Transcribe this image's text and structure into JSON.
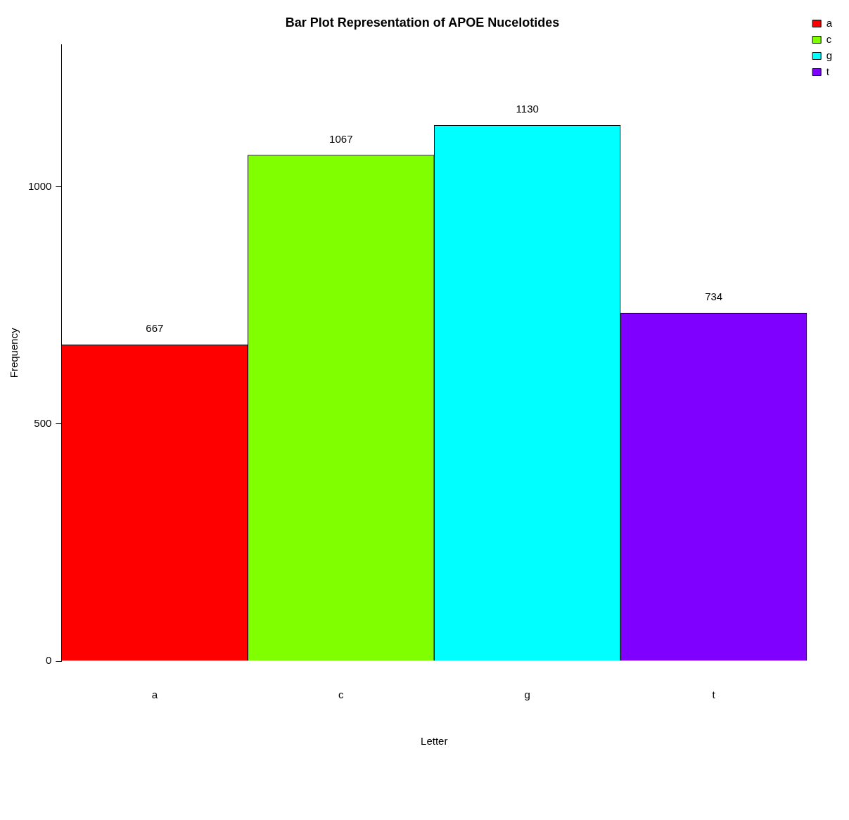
{
  "chart_data": {
    "type": "bar",
    "title": "Bar Plot Representation of APOE Nucelotides",
    "xlabel": "Letter",
    "ylabel": "Frequency",
    "categories": [
      "a",
      "c",
      "g",
      "t"
    ],
    "series": [
      {
        "name": "a",
        "color": "#ff0000",
        "values": [
          667,
          null,
          null,
          null
        ]
      },
      {
        "name": "c",
        "color": "#80ff00",
        "values": [
          null,
          1067,
          null,
          null
        ]
      },
      {
        "name": "g",
        "color": "#00ffff",
        "values": [
          null,
          null,
          1130,
          null
        ]
      },
      {
        "name": "t",
        "color": "#8000ff",
        "values": [
          null,
          null,
          null,
          734
        ]
      }
    ],
    "ylim": [
      0,
      1300
    ],
    "yticks": [
      0,
      500,
      1000
    ],
    "data_labels": true,
    "legend": "top right"
  }
}
